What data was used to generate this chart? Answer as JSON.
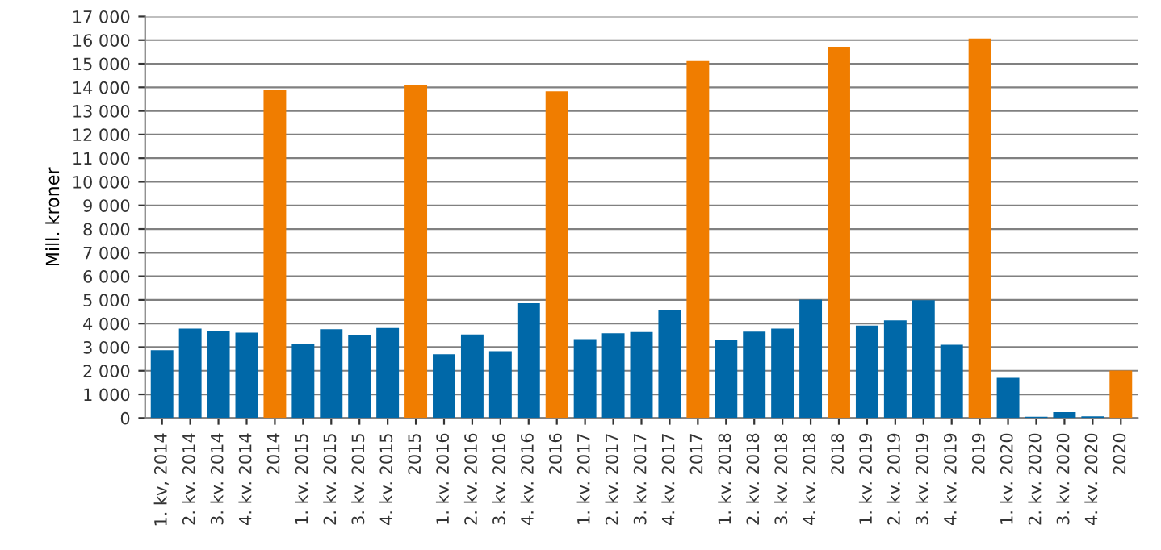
{
  "chart_data": {
    "type": "bar",
    "ylabel": "Mill. kroner",
    "categories": [
      "1. kv, 2014",
      "2. kv. 2014",
      "3. kv. 2014",
      "4. kv. 2014",
      "2014",
      "1. kv. 2015",
      "2. kv. 2015",
      "3. kv. 2015",
      "4. kv. 2015",
      "2015",
      "1. kv. 2016",
      "2. kv. 2016",
      "3. kv. 2016",
      "4. kv. 2016",
      "2016",
      "1. kv. 2017",
      "2. kv. 2017",
      "3. kv. 2017",
      "4. kv. 2017",
      "2017",
      "1. kv. 2018",
      "2. kv. 2018",
      "3. kv. 2018",
      "4. kv. 2018",
      "2018",
      "1. kv. 2019",
      "2. kv. 2019",
      "3. kv. 2019",
      "4. kv. 2019",
      "2019",
      "1. kv. 2020",
      "2. kv. 2020",
      "3. kv. 2020",
      "4. kv. 2020",
      "2020"
    ],
    "values": [
      2870,
      3780,
      3690,
      3610,
      13880,
      3120,
      3760,
      3490,
      3810,
      14100,
      2700,
      3540,
      2830,
      4860,
      13830,
      3340,
      3590,
      3640,
      4570,
      15110,
      3320,
      3660,
      3780,
      5010,
      15720,
      3910,
      4130,
      4990,
      3100,
      16070,
      1700,
      50,
      250,
      70,
      2010
    ],
    "colors": [
      "#0068a8",
      "#0068a8",
      "#0068a8",
      "#0068a8",
      "#f07d00",
      "#0068a8",
      "#0068a8",
      "#0068a8",
      "#0068a8",
      "#f07d00",
      "#0068a8",
      "#0068a8",
      "#0068a8",
      "#0068a8",
      "#f07d00",
      "#0068a8",
      "#0068a8",
      "#0068a8",
      "#0068a8",
      "#f07d00",
      "#0068a8",
      "#0068a8",
      "#0068a8",
      "#0068a8",
      "#f07d00",
      "#0068a8",
      "#0068a8",
      "#0068a8",
      "#0068a8",
      "#f07d00",
      "#0068a8",
      "#0068a8",
      "#0068a8",
      "#0068a8",
      "#f07d00"
    ],
    "ylim": [
      0,
      17000
    ],
    "yticks": [
      0,
      {
        "value": 1000,
        "label": "1 000"
      },
      {
        "value": 2000,
        "label": "2 000"
      },
      {
        "value": 3000,
        "label": "3 000"
      },
      {
        "value": 4000,
        "label": "4 000"
      },
      {
        "value": 5000,
        "label": "5 000"
      },
      {
        "value": 6000,
        "label": "6 000"
      },
      {
        "value": 7000,
        "label": "7 000"
      },
      {
        "value": 8000,
        "label": "8 000"
      },
      {
        "value": 9000,
        "label": "9 000"
      },
      {
        "value": 10000,
        "label": "10 000"
      },
      {
        "value": 11000,
        "label": "11 000"
      },
      {
        "value": 12000,
        "label": "12 000"
      },
      {
        "value": 13000,
        "label": "13 000"
      },
      {
        "value": 14000,
        "label": "14 000"
      },
      {
        "value": 15000,
        "label": "15 000"
      },
      {
        "value": 16000,
        "label": "16 000"
      },
      {
        "value": 17000,
        "label": "17 000"
      }
    ],
    "grid": "y"
  }
}
